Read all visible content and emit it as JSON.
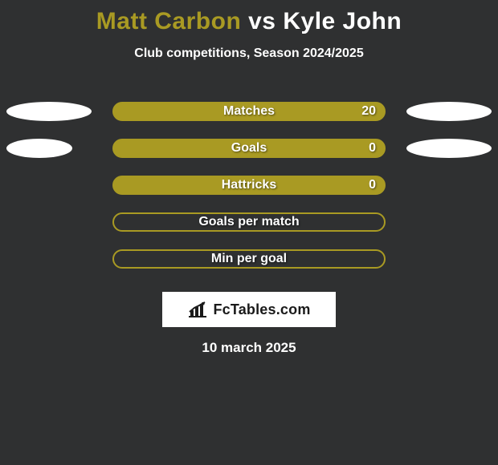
{
  "colors": {
    "background": "#2f3031",
    "title_p1": "#a99a23",
    "title_vs": "#ffffff",
    "title_p2": "#ffffff",
    "subtitle": "#ffffff",
    "bar_fill": "#a99a23",
    "bar_border": "#a99a23",
    "bar_text": "#ffffff",
    "pill_left": "#ffffff",
    "pill_right": "#ffffff",
    "brand_bg": "#ffffff",
    "brand_text": "#1a1a1a",
    "date_text": "#ffffff"
  },
  "title": {
    "player1": "Matt Carbon",
    "vs": "vs",
    "player2": "Kyle John"
  },
  "subtitle": "Club competitions, Season 2024/2025",
  "layout": {
    "pill_left_width": 106,
    "pill_right_width": 106
  },
  "rows": [
    {
      "label": "Matches",
      "value_right": "20",
      "filled": true,
      "show_left_pill": true,
      "show_right_pill": true,
      "left_pill_width": 106,
      "right_pill_width": 106
    },
    {
      "label": "Goals",
      "value_right": "0",
      "filled": true,
      "show_left_pill": true,
      "show_right_pill": true,
      "left_pill_width": 82,
      "right_pill_width": 106
    },
    {
      "label": "Hattricks",
      "value_right": "0",
      "filled": true,
      "show_left_pill": false,
      "show_right_pill": false,
      "left_pill_width": 0,
      "right_pill_width": 0
    },
    {
      "label": "Goals per match",
      "value_right": "",
      "filled": false,
      "show_left_pill": false,
      "show_right_pill": false,
      "left_pill_width": 0,
      "right_pill_width": 0
    },
    {
      "label": "Min per goal",
      "value_right": "",
      "filled": false,
      "show_left_pill": false,
      "show_right_pill": false,
      "left_pill_width": 0,
      "right_pill_width": 0
    }
  ],
  "brand": "FcTables.com",
  "date": "10 march 2025"
}
